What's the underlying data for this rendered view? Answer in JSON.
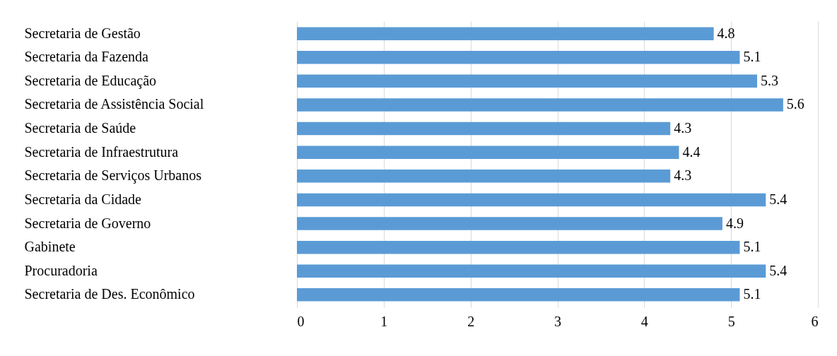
{
  "chart_data": {
    "type": "bar",
    "orientation": "horizontal",
    "categories": [
      "Secretaria de Gestão",
      "Secretaria da Fazenda",
      "Secretaria de Educação",
      "Secretaria de Assistência Social",
      "Secretaria de Saúde",
      "Secretaria de Infraestrutura",
      "Secretaria de Serviços Urbanos",
      "Secretaria da Cidade",
      "Secretaria de Governo",
      "Gabinete",
      "Procuradoria",
      "Secretaria de Des. Econômico"
    ],
    "values": [
      4.8,
      5.1,
      5.3,
      5.6,
      4.3,
      4.4,
      4.3,
      5.4,
      4.9,
      5.1,
      5.4,
      5.1
    ],
    "color": "#5b9bd5",
    "xlim": [
      0,
      6
    ],
    "xticks": [
      0,
      1,
      2,
      3,
      4,
      5,
      6
    ],
    "grid": "x",
    "data_labels": true
  }
}
